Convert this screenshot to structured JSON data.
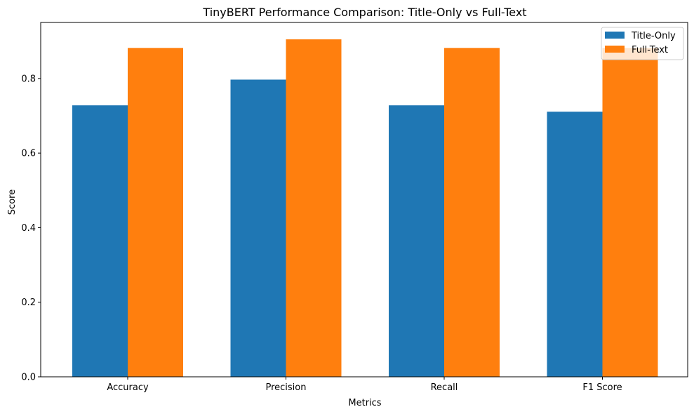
{
  "chart_data": {
    "type": "bar",
    "title": "TinyBERT Performance Comparison: Title-Only vs Full-Text",
    "xlabel": "Metrics",
    "ylabel": "Score",
    "categories": [
      "Accuracy",
      "Precision",
      "Recall",
      "F1 Score"
    ],
    "series": [
      {
        "name": "Title-Only",
        "color": "#1f77b4",
        "values": [
          0.728,
          0.797,
          0.728,
          0.711
        ]
      },
      {
        "name": "Full-Text",
        "color": "#ff7f0e",
        "values": [
          0.882,
          0.905,
          0.882,
          0.882
        ]
      }
    ],
    "ylim": [
      0,
      0.9503
    ],
    "yticks": [
      0.0,
      0.2,
      0.4,
      0.6,
      0.8
    ],
    "ytick_labels": [
      "0.0",
      "0.2",
      "0.4",
      "0.6",
      "0.8"
    ],
    "grid": false,
    "legend": "top-right"
  }
}
